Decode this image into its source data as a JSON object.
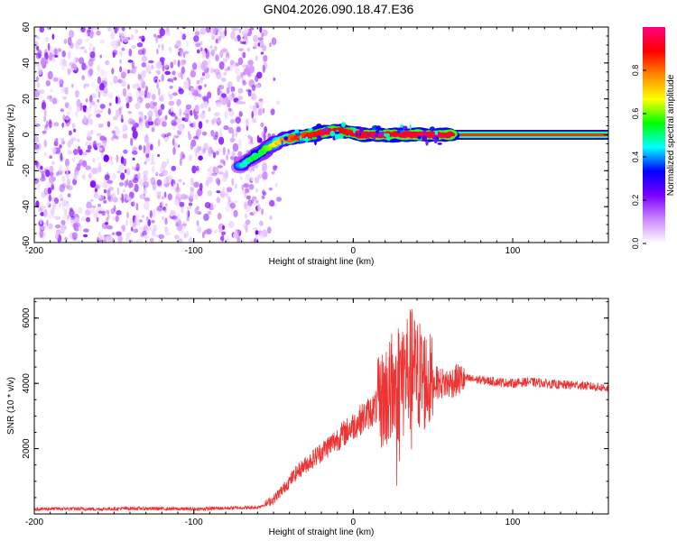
{
  "title": "GN04.2026.090.18.47.E36",
  "chart_data": [
    {
      "type": "heatmap",
      "xlabel": "Height of straight line (km)",
      "ylabel": "Frequency (Hz)",
      "xlim": [
        -200,
        160
      ],
      "ylim": [
        -60,
        60
      ],
      "xticks": [
        -200,
        -100,
        0,
        100
      ],
      "yticks": [
        -60,
        -40,
        -20,
        0,
        20,
        40,
        60
      ],
      "colorbar": {
        "label": "Normalized spectral amplitude",
        "range": [
          0,
          1
        ],
        "ticks": [
          "0.0",
          "0.2",
          "0.4",
          "0.6",
          "0.8"
        ],
        "colors": [
          "#ffffff",
          "#cc88ff",
          "#7a00ff",
          "#0000ff",
          "#00ffff",
          "#00ff00",
          "#ffff00",
          "#ff8800",
          "#ff0000",
          "#ff0080"
        ]
      },
      "noise_region": {
        "x_from": -200,
        "x_to": -55,
        "amplitude_range": [
          0.0,
          0.2
        ]
      },
      "ridge": {
        "x": [
          -72,
          -65,
          -55,
          -45,
          -35,
          -25,
          -15,
          -5,
          5,
          15,
          25,
          35,
          45,
          60,
          80,
          100,
          120,
          140,
          160
        ],
        "frequency": [
          -18,
          -14,
          -8,
          -3,
          -1,
          0,
          2,
          2,
          0,
          0,
          0,
          0,
          0,
          0,
          0,
          0,
          0,
          0,
          0
        ],
        "amplitude": [
          0.35,
          0.45,
          0.55,
          0.7,
          0.8,
          0.85,
          0.9,
          0.85,
          0.9,
          0.9,
          0.9,
          0.9,
          0.9,
          0.9,
          0.9,
          0.9,
          0.9,
          0.9,
          0.9
        ]
      }
    },
    {
      "type": "line",
      "xlabel": "Height of straight line (km)",
      "ylabel": "SNR (10 * v/v)",
      "xlim": [
        -200,
        160
      ],
      "ylim": [
        0,
        6600
      ],
      "xticks": [
        -200,
        -100,
        0,
        100
      ],
      "yticks": [
        2000,
        4000,
        6000
      ],
      "series": [
        {
          "color": "#ee3333",
          "x": [
            -200,
            -180,
            -160,
            -140,
            -120,
            -100,
            -80,
            -60,
            -55,
            -50,
            -45,
            -40,
            -35,
            -30,
            -25,
            -20,
            -15,
            -10,
            -5,
            0,
            5,
            10,
            15,
            20,
            25,
            30,
            35,
            40,
            45,
            50,
            55,
            60,
            65,
            70,
            80,
            90,
            100,
            110,
            120,
            130,
            140,
            150,
            160
          ],
          "y": [
            150,
            160,
            150,
            170,
            160,
            150,
            180,
            200,
            300,
            450,
            700,
            1000,
            1300,
            1500,
            1700,
            1900,
            2100,
            2300,
            2500,
            2700,
            2900,
            3100,
            3300,
            3600,
            3800,
            4200,
            4400,
            4300,
            4100,
            4050,
            4000,
            4000,
            4100,
            4150,
            4100,
            4050,
            4000,
            4050,
            4000,
            3950,
            3950,
            3900,
            3850
          ]
        }
      ]
    }
  ]
}
